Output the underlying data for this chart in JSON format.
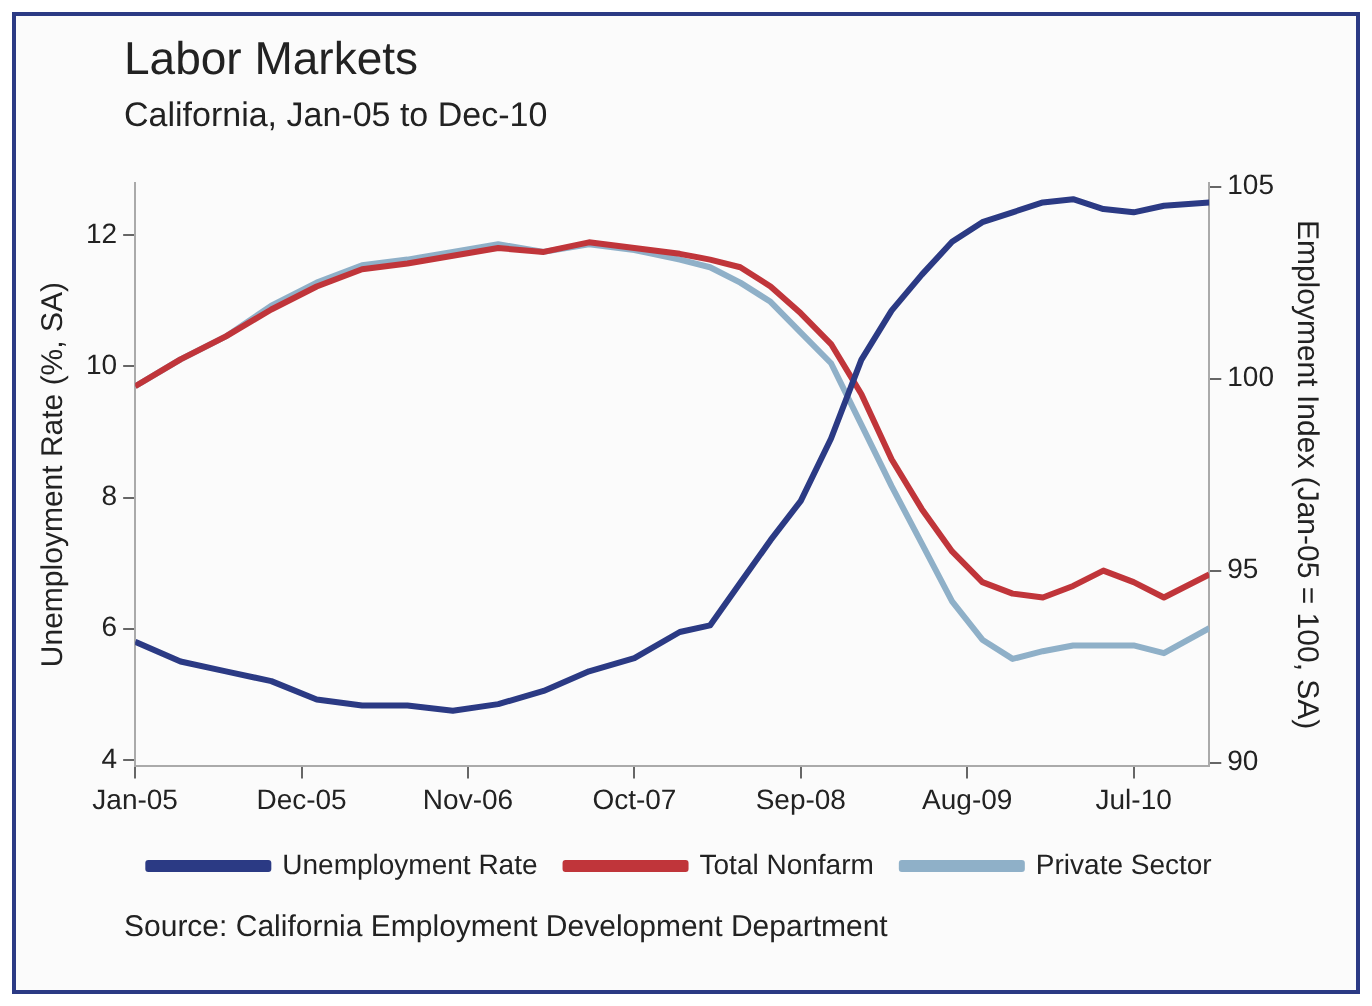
{
  "chart_data": {
    "type": "line",
    "title": "Labor Markets",
    "subtitle": "California, Jan-05 to Dec-10",
    "ylabel": "Unemployment Rate (%, SA)",
    "y2label": "Employment Index (Jan-05 = 100, SA)",
    "x": [
      "2005-01",
      "2005-04",
      "2005-07",
      "2005-10",
      "2006-01",
      "2006-04",
      "2006-07",
      "2006-10",
      "2007-01",
      "2007-04",
      "2007-07",
      "2007-10",
      "2008-01",
      "2008-03",
      "2008-05",
      "2008-07",
      "2008-09",
      "2008-11",
      "2009-01",
      "2009-03",
      "2009-05",
      "2009-07",
      "2009-09",
      "2009-11",
      "2010-01",
      "2010-03",
      "2010-05",
      "2010-07",
      "2010-09",
      "2010-12"
    ],
    "series": [
      {
        "name": "Unemployment Rate",
        "color": "#2b3a84",
        "values": [
          5.8,
          5.5,
          5.35,
          5.2,
          4.92,
          4.83,
          4.83,
          4.75,
          4.85,
          5.05,
          5.35,
          5.55,
          5.95,
          6.05,
          6.7,
          7.35,
          7.95,
          8.9,
          10.1,
          10.85,
          11.4,
          11.9,
          12.2,
          12.35,
          12.5,
          12.55,
          12.4,
          12.35,
          12.45,
          12.5
        ]
      },
      {
        "name": "Total Nonfarm",
        "color": "#c0353a",
        "axis": "y2",
        "values": [
          99.8,
          100.5,
          101.1,
          101.8,
          102.4,
          102.85,
          103.0,
          103.2,
          103.4,
          103.3,
          103.55,
          103.4,
          103.25,
          103.1,
          102.9,
          102.4,
          101.7,
          100.9,
          99.6,
          97.9,
          96.6,
          95.5,
          94.7,
          94.4,
          94.3,
          94.6,
          95.0,
          94.7,
          94.3,
          94.9
        ]
      },
      {
        "name": "Private Sector",
        "color": "#8fb0c8",
        "axis": "y2",
        "values": [
          99.8,
          100.5,
          101.1,
          101.9,
          102.5,
          102.95,
          103.1,
          103.3,
          103.5,
          103.3,
          103.5,
          103.35,
          103.1,
          102.9,
          102.5,
          102.0,
          101.2,
          100.4,
          98.8,
          97.2,
          95.7,
          94.2,
          93.2,
          92.7,
          92.9,
          93.05,
          93.05,
          93.05,
          92.85,
          93.5
        ]
      }
    ],
    "xlim": [
      "2005-01",
      "2010-12"
    ],
    "xticks": [
      {
        "value": "2005-01",
        "label": "Jan-05"
      },
      {
        "value": "2005-12",
        "label": "Dec-05"
      },
      {
        "value": "2006-11",
        "label": "Nov-06"
      },
      {
        "value": "2007-10",
        "label": "Oct-07"
      },
      {
        "value": "2008-09",
        "label": "Sep-08"
      },
      {
        "value": "2009-08",
        "label": "Aug-09"
      },
      {
        "value": "2010-07",
        "label": "Jul-10"
      }
    ],
    "ylim": [
      3.9,
      12.8
    ],
    "yticks": [
      4,
      6,
      8,
      10,
      12
    ],
    "y2lim": [
      89.9,
      105.1
    ],
    "y2ticks": [
      90,
      95,
      100,
      105
    ],
    "grid": false,
    "legend": "bottom",
    "marker": "none",
    "line_style": "solid",
    "annotations": [
      "Source: California Employment Development Department"
    ]
  }
}
